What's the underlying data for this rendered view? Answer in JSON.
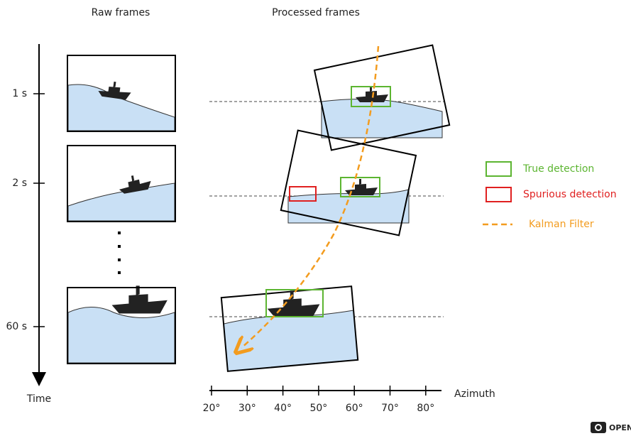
{
  "headers": {
    "raw": "Raw frames",
    "processed": "Processed frames"
  },
  "time_axis": {
    "label": "Time",
    "ticks": [
      "1 s",
      "2 s",
      "60 s"
    ]
  },
  "azimuth_axis": {
    "label": "Azimuth",
    "ticks": [
      "20°",
      "30°",
      "40°",
      "50°",
      "60°",
      "70°",
      "80°"
    ]
  },
  "legend": {
    "items": [
      "True detection",
      "Spurious detection",
      "Kalman Filter"
    ]
  },
  "watermark": "OPEN"
}
